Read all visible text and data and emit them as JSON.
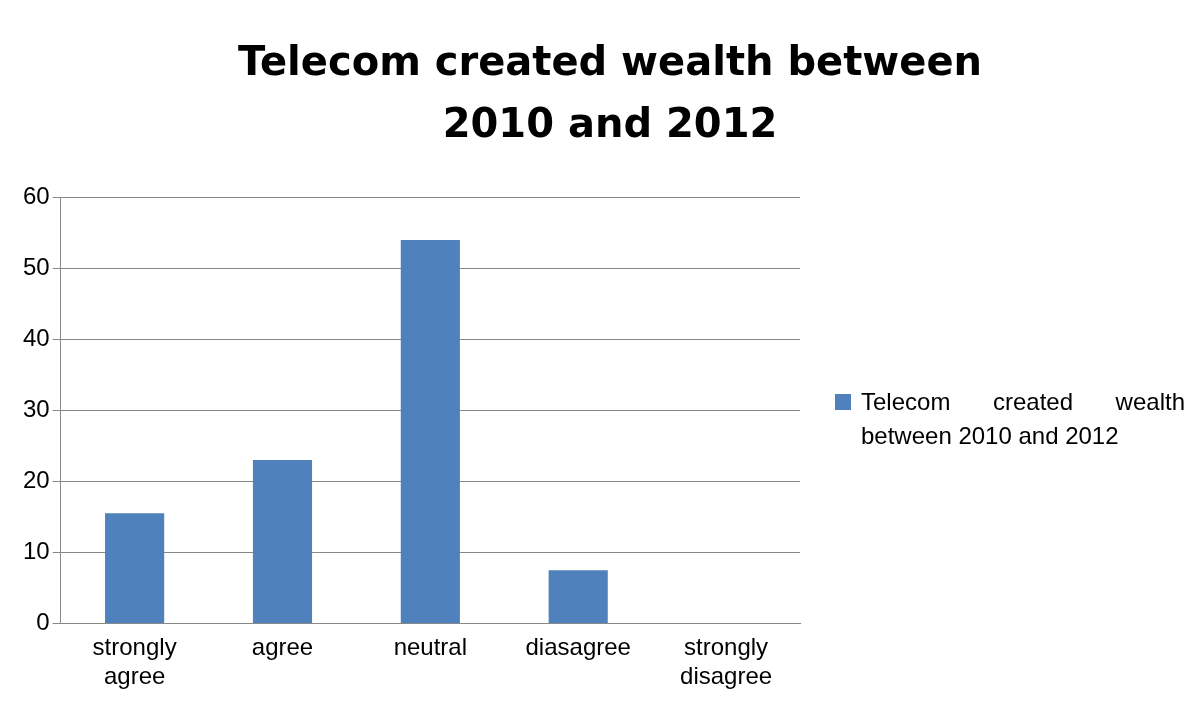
{
  "chart_data": {
    "type": "bar",
    "title": "Telecom created wealth between 2010 and 2012",
    "categories": [
      "strongly agree",
      "agree",
      "neutral",
      "diasagree",
      "strongly disagree"
    ],
    "series": [
      {
        "name": "Telecom created wealth between 2010 and 2012",
        "color": "#4f81bd",
        "values": [
          15.5,
          23,
          54,
          7.5,
          0
        ]
      }
    ],
    "ylim": [
      0,
      60
    ],
    "yticks": [
      0,
      10,
      20,
      30,
      40,
      50,
      60
    ],
    "grid": "y",
    "legend": "right"
  }
}
